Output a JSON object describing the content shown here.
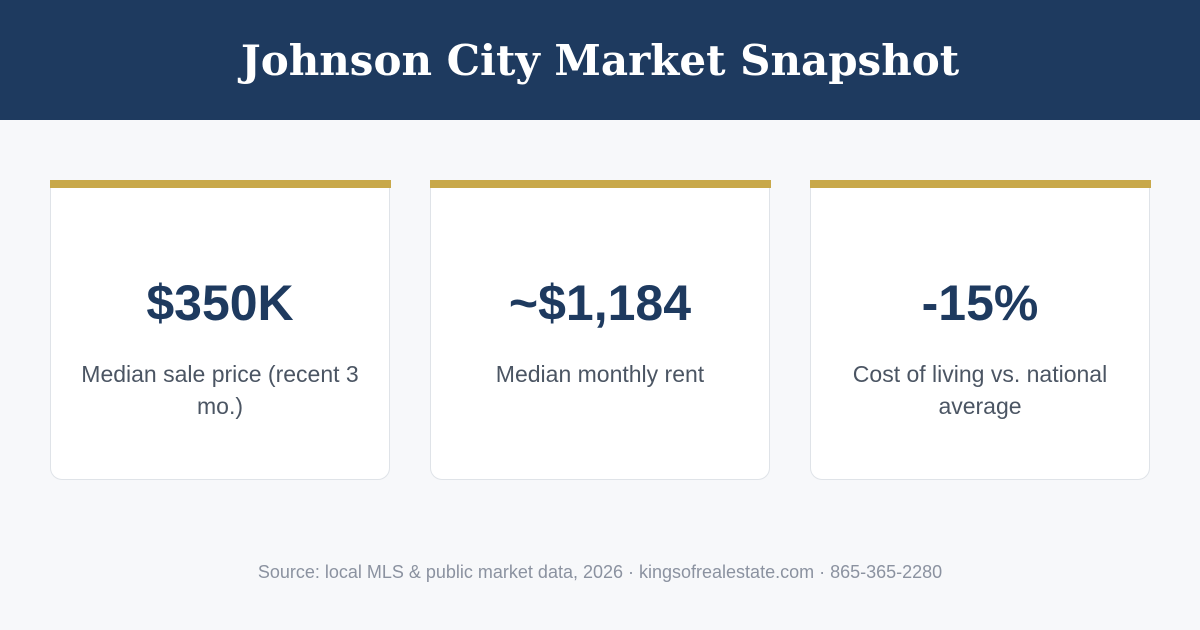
{
  "header": {
    "title": "Johnson City Market Snapshot"
  },
  "stats": [
    {
      "value": "$350K",
      "label": "Median sale price (recent 3 mo.)"
    },
    {
      "value": "~$1,184",
      "label": "Median monthly rent"
    },
    {
      "value": "-15%",
      "label": "Cost of living vs. national average"
    }
  ],
  "footer": {
    "source": "Source: local MLS & public market data, 2026 · kingsofrealestate.com · 865-365-2280"
  },
  "colors": {
    "header_bg": "#1e3a5f",
    "accent": "#c8a84a",
    "value_text": "#1e3a5f",
    "page_bg": "#f7f8fa"
  }
}
